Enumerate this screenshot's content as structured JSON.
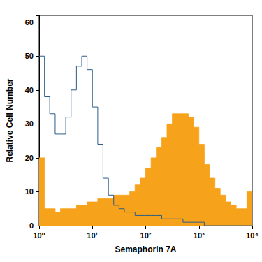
{
  "chart_data": {
    "type": "histogram",
    "xlabel": "Semaphorin 7A",
    "ylabel": "Relative Cell Number",
    "log": "x",
    "grid": false,
    "bins": [
      1,
      1.26,
      1.58,
      2,
      2.51,
      3.16,
      3.98,
      5.01,
      6.31,
      7.94,
      10,
      12.6,
      15.8,
      20,
      25.1,
      31.6,
      39.8,
      50.1,
      63.1,
      79.4,
      100,
      126,
      158,
      200,
      251,
      316,
      398,
      501,
      631,
      794,
      1000,
      1260,
      1580,
      2000,
      2510,
      3160,
      3980,
      5010,
      6310,
      7940,
      10000
    ],
    "series": [
      {
        "type": "area",
        "color": "#f7a21b",
        "values": [
          20,
          5,
          5,
          4,
          5,
          5,
          5,
          6,
          6,
          7,
          7,
          8,
          8,
          8,
          9,
          9,
          9,
          10,
          12,
          14,
          17,
          20,
          23,
          26,
          30,
          33,
          33,
          33,
          32,
          29,
          24,
          18,
          14,
          11,
          9,
          7,
          6,
          5,
          5,
          10
        ]
      },
      {
        "type": "line",
        "color": "#2a5d8a",
        "values": [
          50,
          38,
          33,
          27,
          27,
          32,
          40,
          47,
          50,
          46,
          35,
          24,
          14,
          9,
          6,
          5,
          4,
          4,
          3,
          3,
          3,
          3,
          3,
          2,
          2,
          2,
          2,
          1,
          1,
          1,
          1,
          0,
          0,
          0,
          0,
          0,
          0,
          0,
          0,
          0
        ]
      }
    ],
    "xlim": [
      1,
      10000
    ],
    "xticks": [
      {
        "value": 1,
        "label": "10⁰"
      },
      {
        "value": 10,
        "label": "10¹"
      },
      {
        "value": 100,
        "label": "10²"
      },
      {
        "value": 1000,
        "label": "10³"
      },
      {
        "value": 10000,
        "label": "10⁴"
      }
    ],
    "ylim": [
      0,
      62
    ],
    "yticks": [
      0,
      10,
      20,
      30,
      40,
      50,
      60
    ]
  }
}
